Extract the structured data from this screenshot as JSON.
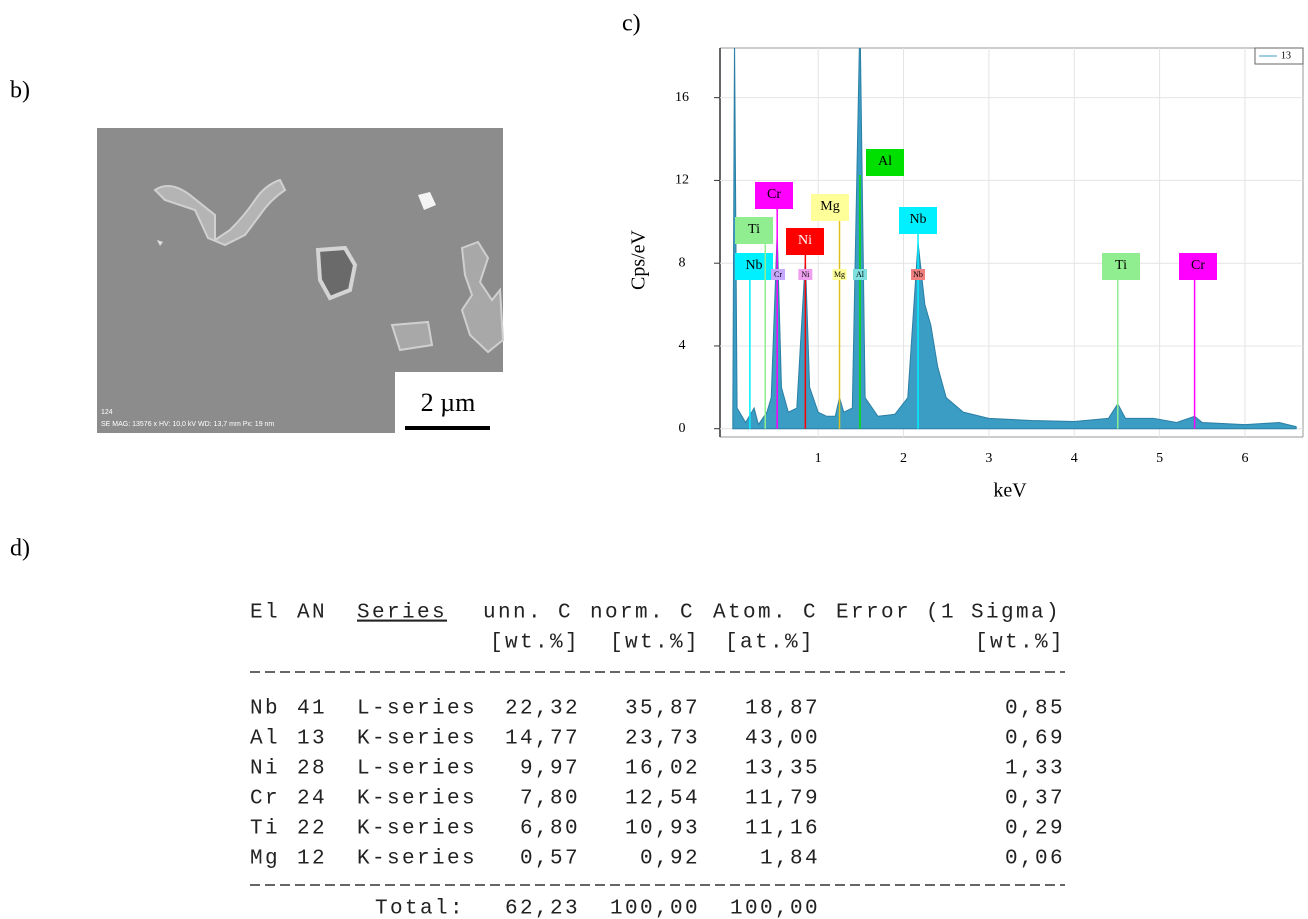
{
  "panels": {
    "b": "b)",
    "c": "c)",
    "d": "d)"
  },
  "sem_image": {
    "id_label": "124",
    "info": "SE MAG: 13576 x HV: 10,0 kV WD: 13,7 mm Px: 19 nm",
    "scale_bar": "2 µm"
  },
  "chart_data": {
    "type": "area",
    "xlabel": "keV",
    "ylabel": "Cps/eV",
    "color": "#3b9cc4",
    "grid": true,
    "legend": "top-right",
    "x": [
      0.0,
      0.02,
      0.05,
      0.15,
      0.25,
      0.3,
      0.4,
      0.45,
      0.52,
      0.57,
      0.65,
      0.75,
      0.85,
      0.9,
      1.0,
      1.1,
      1.2,
      1.25,
      1.3,
      1.4,
      1.49,
      1.55,
      1.7,
      1.9,
      2.05,
      2.17,
      2.25,
      2.32,
      2.4,
      2.5,
      2.7,
      3.0,
      3.5,
      4.0,
      4.4,
      4.51,
      4.6,
      4.93,
      5.2,
      5.41,
      5.5,
      6.0,
      6.4,
      6.6
    ],
    "series": [
      {
        "name": "13",
        "color": "#3b9cc4",
        "values": [
          0.5,
          19,
          1,
          0.3,
          1,
          0.2,
          0.8,
          1.5,
          9.5,
          2,
          0.8,
          1,
          8.2,
          2,
          0.8,
          0.6,
          0.6,
          1.5,
          0.8,
          1,
          20,
          1.5,
          0.6,
          0.7,
          1.5,
          9,
          6,
          5,
          3,
          1.5,
          0.8,
          0.5,
          0.4,
          0.35,
          0.5,
          1.2,
          0.5,
          0.5,
          0.3,
          0.6,
          0.3,
          0.2,
          0.3,
          0.1
        ]
      }
    ],
    "xlim": [
      -0.15,
      6.68
    ],
    "ylim": [
      -0.4,
      18.4
    ],
    "xticks": [
      1,
      2,
      3,
      4,
      5,
      6
    ],
    "yticks": [
      0,
      4,
      8,
      12,
      16
    ],
    "element_markers": [
      {
        "label": "Nb",
        "energy": 0.2,
        "color": "#00f0ff"
      },
      {
        "label": "Ti",
        "energy": 0.38,
        "color": "#90ee90"
      },
      {
        "label": "Cr",
        "energy": 0.52,
        "color": "#ff00ff"
      },
      {
        "label": "Mg",
        "energy": 1.25,
        "color": "#ffff99"
      },
      {
        "label": "Ni",
        "energy": 0.85,
        "color": "#ff0000"
      },
      {
        "label": "Al",
        "energy": 1.49,
        "color": "#00e000"
      },
      {
        "label": "Nb",
        "energy": 2.17,
        "color": "#00f0ff"
      },
      {
        "label": "Ti",
        "energy": 4.51,
        "color": "#90ee90"
      },
      {
        "label": "Cr",
        "energy": 5.41,
        "color": "#ff00ff"
      }
    ],
    "peak_tags": [
      {
        "label": "Cr",
        "energy": 0.53,
        "color": "#c8a8ff"
      },
      {
        "label": "Ni",
        "energy": 0.85,
        "color": "#eea0ee"
      },
      {
        "label": "Mg",
        "energy": 1.25,
        "color": "#ffff99"
      },
      {
        "label": "Al",
        "energy": 1.49,
        "color": "#80e0e0"
      },
      {
        "label": "Nb",
        "energy": 2.17,
        "color": "#f08080"
      }
    ]
  },
  "table": {
    "header": [
      "El",
      "AN",
      "Series",
      "unn. C",
      "norm. C",
      "Atom. C",
      "Error (1 Sigma)"
    ],
    "units": [
      "[wt.%]",
      "[wt.%]",
      "[at.%]",
      "[wt.%]"
    ],
    "rows": [
      [
        "Nb",
        "41",
        "L-series",
        "22,32",
        "35,87",
        "18,87",
        "0,85"
      ],
      [
        "Al",
        "13",
        "K-series",
        "14,77",
        "23,73",
        "43,00",
        "0,69"
      ],
      [
        "Ni",
        "28",
        "L-series",
        "9,97",
        "16,02",
        "13,35",
        "1,33"
      ],
      [
        "Cr",
        "24",
        "K-series",
        "7,80",
        "12,54",
        "11,79",
        "0,37"
      ],
      [
        "Ti",
        "22",
        "K-series",
        "6,80",
        "10,93",
        "11,16",
        "0,29"
      ],
      [
        "Mg",
        "12",
        "K-series",
        "0,57",
        "0,92",
        "1,84",
        "0,06"
      ]
    ],
    "total": {
      "label": "Total:",
      "values": [
        "62,23",
        "100,00",
        "100,00"
      ]
    }
  }
}
